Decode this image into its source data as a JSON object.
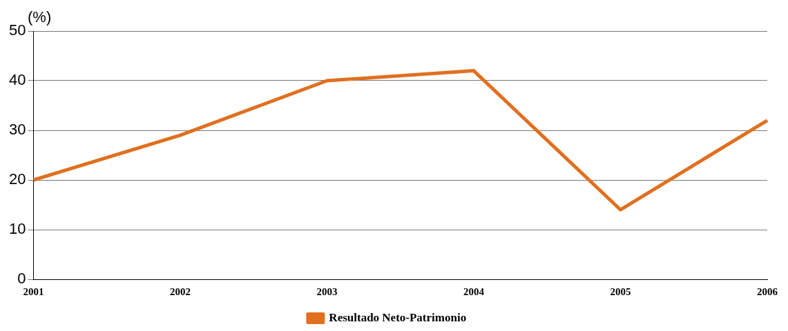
{
  "chart_data": {
    "type": "line",
    "ylabel": "(%)",
    "categories": [
      "2001",
      "2002",
      "2003",
      "2004",
      "2005",
      "2006"
    ],
    "series": [
      {
        "name": "Resultado Neto-Patrimonio",
        "color": "#e07020",
        "values": [
          20,
          29,
          40,
          42,
          14,
          32
        ]
      }
    ],
    "ylim": [
      0,
      50
    ],
    "yticks": [
      0,
      10,
      20,
      30,
      40,
      50
    ],
    "grid": "y",
    "legend": "bottom",
    "marker": "none",
    "line_style": "solid"
  }
}
